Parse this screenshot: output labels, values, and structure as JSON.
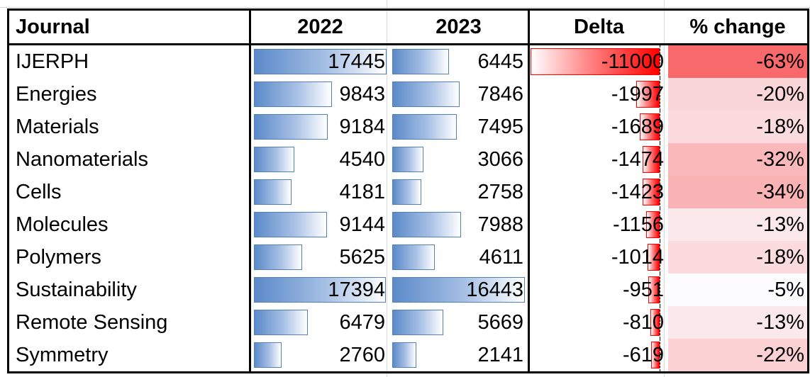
{
  "headers": {
    "journal": "Journal",
    "y2022": "2022",
    "y2023": "2023",
    "delta": "Delta",
    "pct": "% change"
  },
  "rows": [
    {
      "journal": "IJERPH",
      "y2022": "17445",
      "y2023": "6445",
      "delta": "-11000",
      "pct": "-63%"
    },
    {
      "journal": "Energies",
      "y2022": "9843",
      "y2023": "7846",
      "delta": "-1997",
      "pct": "-20%"
    },
    {
      "journal": "Materials",
      "y2022": "9184",
      "y2023": "7495",
      "delta": "-1689",
      "pct": "-18%"
    },
    {
      "journal": "Nanomaterials",
      "y2022": "4540",
      "y2023": "3066",
      "delta": "-1474",
      "pct": "-32%"
    },
    {
      "journal": "Cells",
      "y2022": "4181",
      "y2023": "2758",
      "delta": "-1423",
      "pct": "-34%"
    },
    {
      "journal": "Molecules",
      "y2022": "9144",
      "y2023": "7988",
      "delta": "-1156",
      "pct": "-13%"
    },
    {
      "journal": "Polymers",
      "y2022": "5625",
      "y2023": "4611",
      "delta": "-1014",
      "pct": "-18%"
    },
    {
      "journal": "Sustainability",
      "y2022": "17394",
      "y2023": "16443",
      "delta": "-951",
      "pct": "-5%"
    },
    {
      "journal": "Remote Sensing",
      "y2022": "6479",
      "y2023": "5669",
      "delta": "-810",
      "pct": "-13%"
    },
    {
      "journal": "Symmetry",
      "y2022": "2760",
      "y2023": "2141",
      "delta": "-619",
      "pct": "-22%"
    }
  ],
  "colors": {
    "data_bar_blue": "#5b8ac9",
    "data_bar_red": "#ff0000",
    "color_scale_max": "#f8696b",
    "color_scale_min": "#fcfcff"
  }
}
